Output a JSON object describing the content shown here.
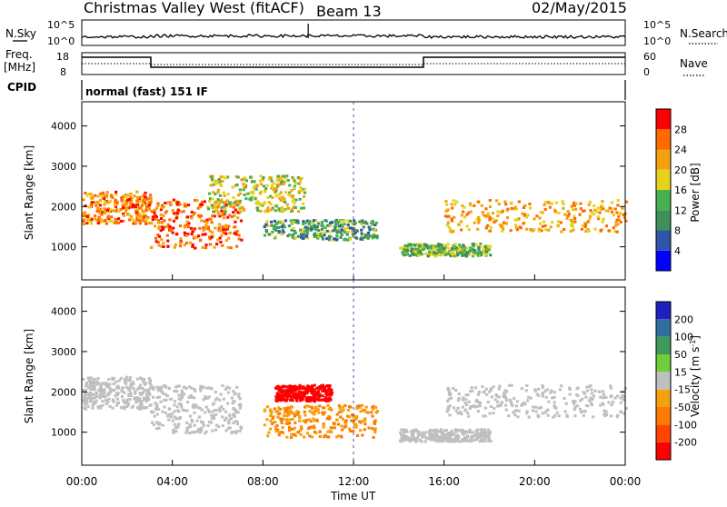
{
  "header": {
    "station": "Christmas Valley West (fitACF)",
    "beam": "Beam 13",
    "date": "02/May/2015"
  },
  "status_panels": {
    "nsky_label": "N.Sky",
    "nsearch_label": "N.Search",
    "nsky_ticks": [
      "10^5",
      "10^0"
    ],
    "nsearch_ticks": [
      "10^5",
      "10^0"
    ],
    "freq_label_1": "Freq.",
    "freq_label_2": "[MHz]",
    "freq_ticks": [
      "18",
      "8"
    ],
    "nave_label": "Nave",
    "nave_ticks": [
      "60",
      "0"
    ],
    "cpid_label": "CPID",
    "cpid_text": "normal (fast) 151 IF"
  },
  "chart_data": [
    {
      "type": "heatmap",
      "panel": "power",
      "ylabel": "Slant Range [km]",
      "yticks": [
        "1000",
        "2000",
        "3000",
        "4000"
      ],
      "ylim": [
        180,
        4600
      ],
      "xlim": [
        "00:00",
        "24:00"
      ],
      "colorbar_label": "Power [dB]",
      "colorbar_ticks": [
        "4",
        "8",
        "12",
        "16",
        "20",
        "24",
        "28"
      ],
      "colorbar_colors": [
        "#0000ff",
        "#2f55a8",
        "#3f8f5a",
        "#46b050",
        "#e7d11a",
        "#f5a10f",
        "#ff6a00",
        "#ff0000"
      ],
      "echo_bands": [
        {
          "t_start": 0.0,
          "t_end": 3.0,
          "range_km": [
            1600,
            2400
          ],
          "level_db": 24
        },
        {
          "t_start": 3.0,
          "t_end": 7.0,
          "range_km": [
            1000,
            2200
          ],
          "level_db": 26
        },
        {
          "t_start": 5.5,
          "t_end": 9.8,
          "range_km": [
            1900,
            2800
          ],
          "level_db": 18
        },
        {
          "t_start": 8.0,
          "t_end": 13.0,
          "range_km": [
            1200,
            1700
          ],
          "level_db": 12
        },
        {
          "t_start": 14.0,
          "t_end": 18.0,
          "range_km": [
            800,
            1100
          ],
          "level_db": 14
        },
        {
          "t_start": 16.0,
          "t_end": 24.0,
          "range_km": [
            1400,
            2200
          ],
          "level_db": 22
        }
      ]
    },
    {
      "type": "heatmap",
      "panel": "velocity",
      "ylabel": "Slant Range [km]",
      "yticks": [
        "1000",
        "2000",
        "3000",
        "4000"
      ],
      "ylim": [
        180,
        4600
      ],
      "xlim": [
        "00:00",
        "24:00"
      ],
      "xticks": [
        "00:00",
        "04:00",
        "08:00",
        "12:00",
        "16:00",
        "20:00",
        "00:00"
      ],
      "xlabel": "Time UT",
      "colorbar_label": "Velocity [m s^-1]",
      "colorbar_ticks": [
        "200",
        "100",
        "50",
        "15",
        "-15",
        "-50",
        "-100",
        "-200"
      ],
      "colorbar_colors": [
        "#2020c0",
        "#2f6f9f",
        "#3e9a5a",
        "#6fce3a",
        "#bfbfbf",
        "#f5a10f",
        "#ff7a00",
        "#ff4400",
        "#ff0000"
      ],
      "echo_bands": [
        {
          "t_start": 0.0,
          "t_end": 3.0,
          "range_km": [
            1600,
            2400
          ],
          "velocity": 0
        },
        {
          "t_start": 3.0,
          "t_end": 7.0,
          "range_km": [
            1000,
            2200
          ],
          "velocity": 0
        },
        {
          "t_start": 8.5,
          "t_end": 11.0,
          "range_km": [
            1800,
            2200
          ],
          "velocity": -200
        },
        {
          "t_start": 8.0,
          "t_end": 13.0,
          "range_km": [
            900,
            1700
          ],
          "velocity": -50
        },
        {
          "t_start": 14.0,
          "t_end": 18.0,
          "range_km": [
            800,
            1100
          ],
          "velocity": 0
        },
        {
          "t_start": 16.0,
          "t_end": 24.0,
          "range_km": [
            1400,
            2200
          ],
          "velocity": 0
        }
      ]
    }
  ]
}
